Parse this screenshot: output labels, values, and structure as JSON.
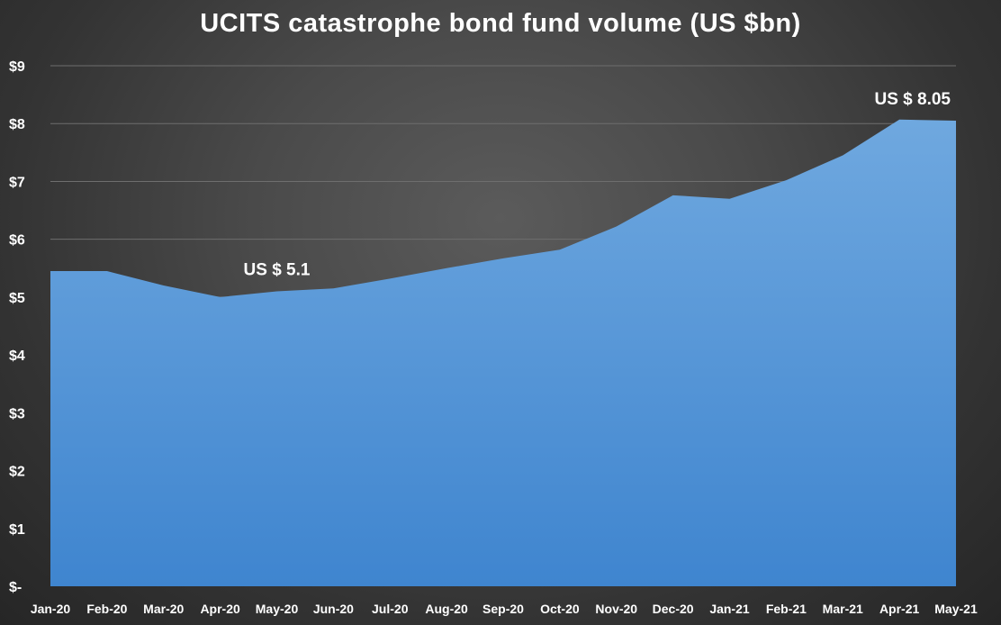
{
  "chart_data": {
    "type": "area",
    "title": "UCITS catastrophe bond fund volume (US $bn)",
    "xlabel": "",
    "ylabel": "",
    "categories": [
      "Jan-20",
      "Feb-20",
      "Mar-20",
      "Apr-20",
      "May-20",
      "Jun-20",
      "Jul-20",
      "Aug-20",
      "Sep-20",
      "Oct-20",
      "Nov-20",
      "Dec-20",
      "Jan-21",
      "Feb-21",
      "Mar-21",
      "Apr-21",
      "May-21"
    ],
    "series": [
      {
        "values": [
          5.45,
          5.45,
          5.2,
          5.0,
          5.1,
          5.15,
          5.32,
          5.5,
          5.67,
          5.82,
          6.22,
          6.76,
          6.7,
          7.02,
          7.45,
          8.07,
          8.05
        ]
      }
    ],
    "ylim": [
      0,
      9
    ],
    "yticks": [
      {
        "value": 0,
        "label": "$-"
      },
      {
        "value": 1,
        "label": "$1"
      },
      {
        "value": 2,
        "label": "$2"
      },
      {
        "value": 3,
        "label": "$3"
      },
      {
        "value": 4,
        "label": "$4"
      },
      {
        "value": 5,
        "label": "$5"
      },
      {
        "value": 6,
        "label": "$6"
      },
      {
        "value": 7,
        "label": "$7"
      },
      {
        "value": 8,
        "label": "$8"
      },
      {
        "value": 9,
        "label": "$9"
      }
    ],
    "grid": true,
    "legend": "none",
    "annotations": [
      {
        "text": "US $ 5.1",
        "category": "May-20",
        "value": 5.1
      },
      {
        "text": "US $ 8.05",
        "category": "May-21",
        "value": 8.05
      }
    ],
    "colors": {
      "area_top": "#6fa8df",
      "area_bottom": "#3f85cf",
      "text": "#ffffff",
      "grid": "#6e6e6e"
    }
  }
}
